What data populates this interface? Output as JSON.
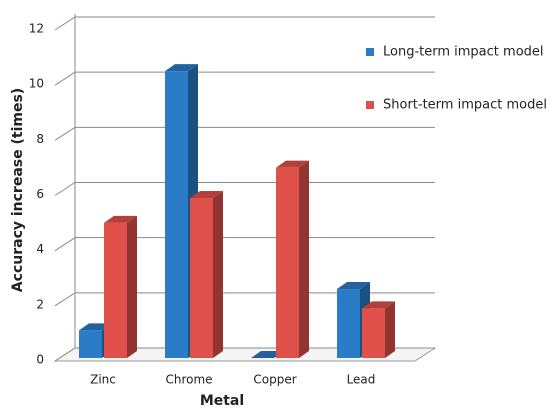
{
  "chart_data": {
    "type": "bar3d",
    "categories": [
      "Zinc",
      "Chrome",
      "Copper",
      "Lead"
    ],
    "series": [
      {
        "name": "Long-term impact model",
        "color": "#2a7cc7",
        "values": [
          1.0,
          10.4,
          0,
          2.5
        ]
      },
      {
        "name": "Short-term impact model",
        "color": "#e0504a",
        "values": [
          4.9,
          5.8,
          6.9,
          1.8
        ]
      }
    ],
    "xlabel": "Metal",
    "ylabel": "Accuracy increase (times)",
    "ylim": [
      0,
      12
    ],
    "yticks": [
      0,
      2,
      4,
      6,
      8,
      10,
      12
    ],
    "grid": true,
    "legend": "right"
  }
}
